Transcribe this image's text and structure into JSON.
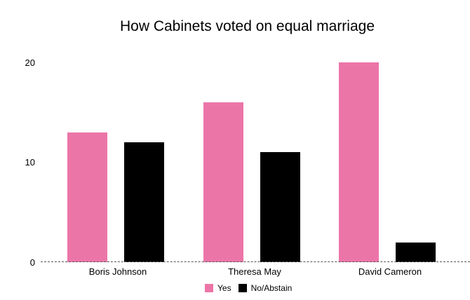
{
  "chart_data": {
    "type": "bar",
    "title": "How Cabinets voted on equal marriage",
    "categories": [
      "Boris Johnson",
      "Theresa May",
      "David Cameron"
    ],
    "series": [
      {
        "name": "Yes",
        "color": "#ec75a8",
        "values": [
          13,
          16,
          20
        ]
      },
      {
        "name": "No/Abstain",
        "color": "#000000",
        "values": [
          12,
          11,
          2
        ]
      }
    ],
    "xlabel": "",
    "ylabel": "",
    "ylim": [
      0,
      20
    ],
    "yticks": [
      "0",
      "10",
      "20"
    ],
    "grid": false,
    "legend_position": "bottom"
  }
}
